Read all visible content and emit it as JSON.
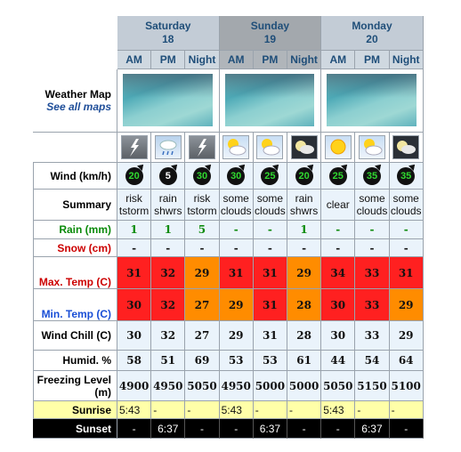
{
  "days": [
    {
      "name": "Saturday",
      "date": "18",
      "active": false
    },
    {
      "name": "Sunday",
      "date": "19",
      "active": true
    },
    {
      "name": "Monday",
      "date": "20",
      "active": false
    }
  ],
  "periods": [
    "AM",
    "PM",
    "Night",
    "AM",
    "PM",
    "Night",
    "AM",
    "PM",
    "Night"
  ],
  "weather_map": {
    "title": "Weather Map",
    "link": "See all maps"
  },
  "icons": [
    "thunderstorm-icon",
    "rain-shower-icon",
    "thunderstorm-icon",
    "some-clouds-icon",
    "some-clouds-icon",
    "night-cloud-icon",
    "clear-sun-icon",
    "some-clouds-icon",
    "night-cloud-icon"
  ],
  "labels": {
    "wind": "Wind (km/h)",
    "summary": "Summary",
    "rain": "Rain (mm)",
    "snow": "Snow (cm)",
    "maxtemp": "Max. Temp (C)",
    "mintemp": "Min. Temp (C)",
    "windchill": "Wind Chill (C)",
    "humid": "Humid. %",
    "freezing": "Freezing Level (m)",
    "sunrise": "Sunrise",
    "sunset": "Sunset"
  },
  "wind": [
    "20",
    "5",
    "30",
    "30",
    "25",
    "20",
    "25",
    "35",
    "35"
  ],
  "wind_color": [
    "green",
    "white",
    "green",
    "green",
    "green",
    "green",
    "green",
    "green",
    "green"
  ],
  "summary": [
    [
      "risk",
      "tstorm"
    ],
    [
      "rain",
      "shwrs"
    ],
    [
      "risk",
      "tstorm"
    ],
    [
      "some",
      "clouds"
    ],
    [
      "some",
      "clouds"
    ],
    [
      "rain",
      "shwrs"
    ],
    [
      "clear",
      ""
    ],
    [
      "some",
      "clouds"
    ],
    [
      "some",
      "clouds"
    ]
  ],
  "rain": [
    "1",
    "1",
    "5",
    "-",
    "-",
    "1",
    "-",
    "-",
    "-"
  ],
  "snow": [
    "-",
    "-",
    "-",
    "-",
    "-",
    "-",
    "-",
    "-",
    "-"
  ],
  "maxtemp": [
    "31",
    "32",
    "29",
    "31",
    "31",
    "29",
    "34",
    "33",
    "31"
  ],
  "maxtemp_color": [
    "red",
    "red",
    "orange",
    "red",
    "red",
    "orange",
    "red",
    "red",
    "red"
  ],
  "mintemp": [
    "30",
    "32",
    "27",
    "29",
    "31",
    "28",
    "30",
    "33",
    "29"
  ],
  "mintemp_color": [
    "red",
    "red",
    "orange",
    "orange",
    "red",
    "orange",
    "red",
    "red",
    "orange"
  ],
  "windchill": [
    "30",
    "32",
    "27",
    "29",
    "31",
    "28",
    "30",
    "33",
    "29"
  ],
  "humid": [
    "58",
    "51",
    "69",
    "53",
    "53",
    "61",
    "44",
    "54",
    "64"
  ],
  "freezing": [
    "4900",
    "4950",
    "5050",
    "4950",
    "5000",
    "5000",
    "5050",
    "5150",
    "5100"
  ],
  "sunrise": [
    "5:43",
    "-",
    "-",
    "5:43",
    "-",
    "-",
    "5:43",
    "-",
    "-"
  ],
  "sunset": [
    "-",
    "6:37",
    "-",
    "-",
    "6:37",
    "-",
    "-",
    "6:37",
    "-"
  ]
}
